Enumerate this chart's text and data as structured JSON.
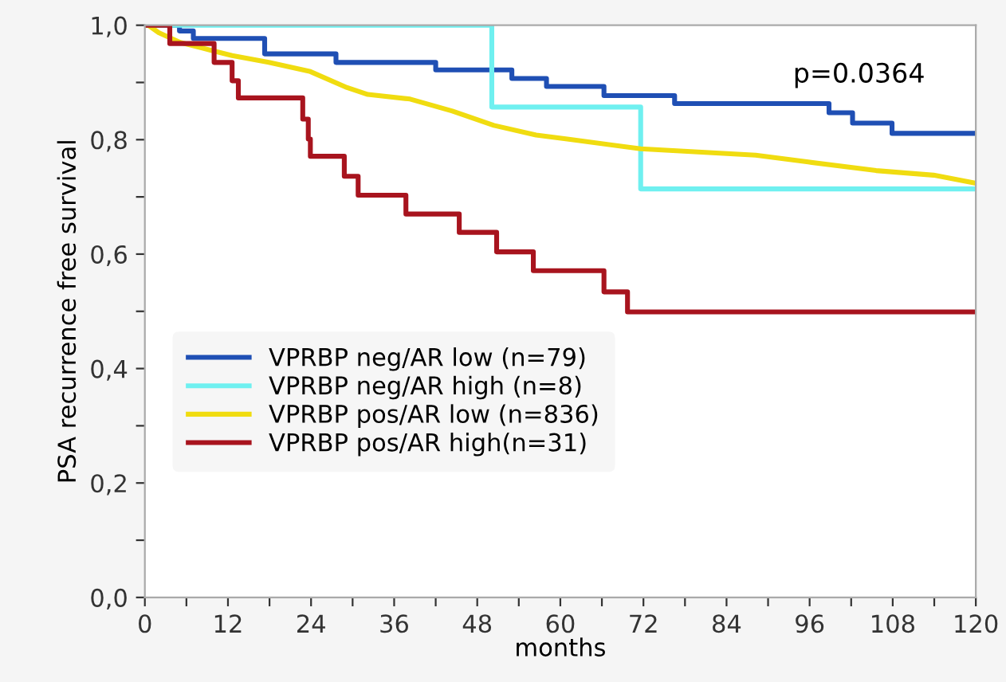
{
  "chart_data": {
    "type": "step",
    "xlabel": "months",
    "ylabel": "PSA recurrence free survival",
    "annotations": [
      "p=0.0364"
    ],
    "xlim": [
      0,
      120
    ],
    "ylim": [
      0,
      1
    ],
    "xticks": [
      0,
      {
        "value": 6,
        "label": null
      },
      12,
      {
        "value": 18,
        "label": null
      },
      24,
      {
        "value": 30,
        "label": null
      },
      36,
      {
        "value": 42,
        "label": null
      },
      48,
      {
        "value": 54,
        "label": null
      },
      60,
      {
        "value": 66,
        "label": null
      },
      72,
      {
        "value": 78,
        "label": null
      },
      84,
      {
        "value": 90,
        "label": null
      },
      96,
      {
        "value": 102,
        "label": null
      },
      108,
      {
        "value": 114,
        "label": null
      },
      120
    ],
    "yticks": [
      {
        "value": 0,
        "label": "0,0"
      },
      {
        "value": 0.1,
        "label": null
      },
      {
        "value": 0.2,
        "label": "0,2"
      },
      {
        "value": 0.3,
        "label": null
      },
      {
        "value": 0.4,
        "label": "0,4"
      },
      {
        "value": 0.5,
        "label": null
      },
      {
        "value": 0.6,
        "label": "0,6"
      },
      {
        "value": 0.7,
        "label": null
      },
      {
        "value": 0.8,
        "label": "0,8"
      },
      {
        "value": 0.9,
        "label": null
      },
      {
        "value": 1,
        "label": "1,0"
      }
    ],
    "grid": false,
    "legend": "bottom left",
    "series": [
      {
        "name": "VPRBP neg/AR low (n=79)",
        "color": "#1f4fb4",
        "x": [
          0,
          5,
          7,
          17.3,
          27.6,
          42,
          53,
          58,
          66.3,
          76.5,
          98.8,
          102.2,
          107.9,
          120
        ],
        "values": [
          1,
          0.99,
          0.977,
          0.95,
          0.935,
          0.922,
          0.907,
          0.893,
          0.877,
          0.863,
          0.847,
          0.829,
          0.811,
          0.811
        ]
      },
      {
        "name": "VPRBP neg/AR high (n=8)",
        "color": "#6ff0f0",
        "x": [
          0,
          50.1,
          71.6,
          120
        ],
        "values": [
          1,
          0.857,
          0.714,
          0.714
        ]
      },
      {
        "name": "VPRBP pos/AR low (n=836)",
        "color": "#f0dc10",
        "type": "line",
        "x": [
          0,
          0.5,
          2,
          5.1,
          9.6,
          12.6,
          17.9,
          23.9,
          29.2,
          32.2,
          38.3,
          44.4,
          50.4,
          56.5,
          61,
          71.6,
          88.2,
          95.8,
          105.6,
          113.9,
          120
        ],
        "values": [
          1,
          1,
          0.987,
          0.97,
          0.956,
          0.947,
          0.935,
          0.919,
          0.891,
          0.879,
          0.871,
          0.85,
          0.825,
          0.808,
          0.801,
          0.784,
          0.773,
          0.761,
          0.746,
          0.738,
          0.724
        ]
      },
      {
        "name": "VPRBP pos/AR high(n=31)",
        "color": "#a8141e",
        "x": [
          0,
          3.6,
          10,
          12.6,
          13.5,
          22.8,
          23.6,
          23.9,
          28.8,
          30.8,
          37.7,
          45.4,
          50.8,
          56.1,
          66.3,
          69.7,
          120
        ],
        "values": [
          1,
          0.968,
          0.935,
          0.903,
          0.873,
          0.836,
          0.801,
          0.771,
          0.736,
          0.703,
          0.67,
          0.638,
          0.604,
          0.571,
          0.534,
          0.499,
          0.499
        ]
      }
    ]
  }
}
